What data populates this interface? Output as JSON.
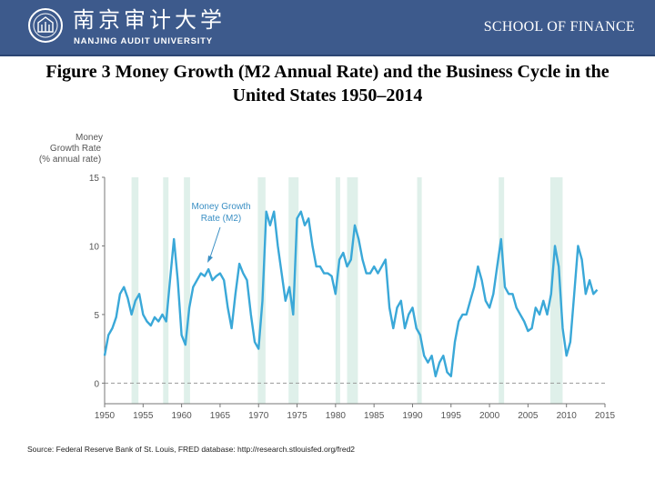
{
  "header": {
    "logo_cn": "南京审计大学",
    "logo_en": "NANJING AUDIT UNIVERSITY",
    "school": "SCHOOL OF FINANCE"
  },
  "figure_title": "Figure 3 Money Growth (M2 Annual Rate) and the Business Cycle in the United States 1950–2014",
  "source": "Source: Federal Reserve Bank of St. Louis, FRED database: http://research.stlouisfed.org/fred2",
  "colors": {
    "header": "#3d5a8c",
    "line": "#3aa8d8",
    "recession": "#dff0ea",
    "axis": "#777777"
  },
  "chart_data": {
    "type": "line",
    "ylabel": [
      "Money",
      "Growth Rate",
      "(% annual rate)"
    ],
    "annotation": [
      "Money Growth",
      "Rate (M2)"
    ],
    "xlim": [
      1950,
      2015
    ],
    "ylim": [
      -1.5,
      15
    ],
    "xticks": [
      1950,
      1955,
      1960,
      1965,
      1970,
      1975,
      1980,
      1985,
      1990,
      1995,
      2000,
      2005,
      2010,
      2015
    ],
    "yticks": [
      0,
      5,
      10,
      15
    ],
    "zero_reference_line": "dashed",
    "recessions": [
      [
        1953.5,
        1954.4
      ],
      [
        1957.6,
        1958.3
      ],
      [
        1960.3,
        1961.1
      ],
      [
        1969.9,
        1970.9
      ],
      [
        1973.9,
        1975.2
      ],
      [
        1980.0,
        1980.6
      ],
      [
        1981.5,
        1982.9
      ],
      [
        1990.6,
        1991.2
      ],
      [
        2001.2,
        2001.9
      ],
      [
        2007.9,
        2009.5
      ]
    ],
    "series": [
      {
        "x": [
          1950.0,
          1950.5,
          1951.0,
          1951.5,
          1952.0,
          1952.5,
          1953.0,
          1953.5,
          1954.0,
          1954.5,
          1955.0,
          1955.5,
          1956.0,
          1956.5,
          1957.0,
          1957.5,
          1958.0,
          1958.5,
          1959.0,
          1959.5,
          1960.0,
          1960.5,
          1961.0,
          1961.5,
          1962.0,
          1962.5,
          1963.0,
          1963.5,
          1964.0,
          1964.5,
          1965.0,
          1965.5,
          1966.0,
          1966.5,
          1967.0,
          1967.5,
          1968.0,
          1968.5,
          1969.0,
          1969.5,
          1970.0,
          1970.5,
          1971.0,
          1971.5,
          1972.0,
          1972.5,
          1973.0,
          1973.5,
          1974.0,
          1974.5,
          1975.0,
          1975.5,
          1976.0,
          1976.5,
          1977.0,
          1977.5,
          1978.0,
          1978.5,
          1979.0,
          1979.5,
          1980.0,
          1980.5,
          1981.0,
          1981.5,
          1982.0,
          1982.5,
          1983.0,
          1983.5,
          1984.0,
          1984.5,
          1985.0,
          1985.5,
          1986.0,
          1986.5,
          1987.0,
          1987.5,
          1988.0,
          1988.5,
          1989.0,
          1989.5,
          1990.0,
          1990.5,
          1991.0,
          1991.5,
          1992.0,
          1992.5,
          1993.0,
          1993.5,
          1994.0,
          1994.5,
          1995.0,
          1995.5,
          1996.0,
          1996.5,
          1997.0,
          1997.5,
          1998.0,
          1998.5,
          1999.0,
          1999.5,
          2000.0,
          2000.5,
          2001.0,
          2001.5,
          2002.0,
          2002.5,
          2003.0,
          2003.5,
          2004.0,
          2004.5,
          2005.0,
          2005.5,
          2006.0,
          2006.5,
          2007.0,
          2007.5,
          2008.0,
          2008.5,
          2009.0,
          2009.5,
          2010.0,
          2010.5,
          2011.0,
          2011.5,
          2012.0,
          2012.5,
          2013.0,
          2013.5,
          2014.0
        ],
        "values": [
          2.0,
          3.5,
          4.0,
          4.8,
          6.5,
          7.0,
          6.2,
          5.0,
          6.0,
          6.5,
          5.0,
          4.5,
          4.2,
          4.8,
          4.5,
          5.0,
          4.5,
          7.5,
          10.5,
          7.5,
          3.5,
          2.8,
          5.5,
          7.0,
          7.5,
          8.0,
          7.8,
          8.3,
          7.5,
          7.8,
          8.0,
          7.5,
          5.5,
          4.0,
          6.5,
          8.7,
          8.0,
          7.5,
          5.0,
          3.0,
          2.5,
          6.0,
          12.5,
          11.5,
          12.5,
          10.0,
          8.0,
          6.0,
          7.0,
          5.0,
          12.0,
          12.5,
          11.5,
          12.0,
          10.0,
          8.5,
          8.5,
          8.0,
          8.0,
          7.8,
          6.5,
          9.0,
          9.5,
          8.5,
          9.0,
          11.5,
          10.5,
          9.0,
          8.0,
          8.0,
          8.5,
          8.0,
          8.5,
          9.0,
          5.5,
          4.0,
          5.5,
          6.0,
          4.0,
          5.0,
          5.5,
          4.0,
          3.5,
          2.0,
          1.5,
          2.0,
          0.5,
          1.5,
          2.0,
          0.8,
          0.5,
          3.0,
          4.5,
          5.0,
          5.0,
          6.0,
          7.0,
          8.5,
          7.5,
          6.0,
          5.5,
          6.5,
          8.5,
          10.5,
          7.0,
          6.5,
          6.5,
          5.5,
          5.0,
          4.5,
          3.8,
          4.0,
          5.5,
          5.0,
          6.0,
          5.0,
          6.5,
          10.0,
          8.5,
          4.0,
          2.0,
          3.0,
          6.5,
          10.0,
          9.0,
          6.5,
          7.5,
          6.5,
          6.8
        ]
      }
    ]
  }
}
